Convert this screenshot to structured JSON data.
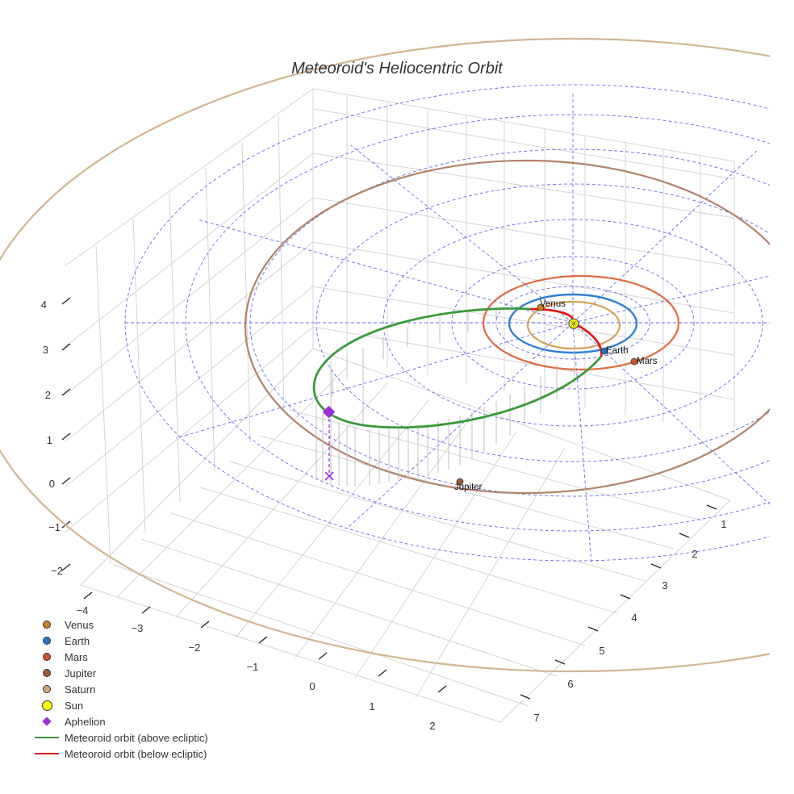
{
  "chart_data": {
    "type": "scatter3d",
    "title": "Meteoroid's Heliocentric Orbit",
    "axes": {
      "x": {
        "tick_labels": [
          "−4",
          "−3",
          "−2",
          "−1",
          "0",
          "1",
          "2"
        ]
      },
      "y": {
        "tick_labels": [
          "1",
          "2",
          "3",
          "4",
          "5",
          "6",
          "7"
        ]
      },
      "z": {
        "tick_labels": [
          "−2",
          "−1",
          "0",
          "1",
          "2",
          "3",
          "4"
        ]
      }
    },
    "planets": [
      {
        "name": "Venus",
        "label": "Venus",
        "color": "#d17f1f",
        "orbit_color": "#d4a35a"
      },
      {
        "name": "Earth",
        "label": "Earth",
        "color": "#2575c9",
        "orbit_color": "#2f7fd0"
      },
      {
        "name": "Mars",
        "label": "Mars",
        "color": "#d0522a",
        "orbit_color": "#e06a42"
      },
      {
        "name": "Jupiter",
        "label": "Jupiter",
        "color": "#9c5a34",
        "orbit_color": "#b3826a"
      },
      {
        "name": "Saturn",
        "label": "",
        "color": "#d6a77a",
        "orbit_color": "#d2b591"
      }
    ],
    "sun": {
      "name": "Sun",
      "color": "#ffff00"
    },
    "aphelion": {
      "name": "Aphelion",
      "color": "#9b30d8"
    },
    "meteoroid_orbit": [
      {
        "name": "Meteoroid orbit (above ecliptic)",
        "color": "#3a9a3a"
      },
      {
        "name": "Meteoroid orbit (below ecliptic)",
        "color": "#e01a1a"
      }
    ],
    "ecliptic_grid_color": "#5050e0",
    "legend_position": "bottom-left"
  },
  "legend": {
    "items": [
      {
        "label": "Venus",
        "kind": "dot",
        "color": "#d17f1f"
      },
      {
        "label": "Earth",
        "kind": "dot",
        "color": "#2575c9"
      },
      {
        "label": "Mars",
        "kind": "dot",
        "color": "#d0522a"
      },
      {
        "label": "Jupiter",
        "kind": "dot",
        "color": "#9c5a34"
      },
      {
        "label": "Saturn",
        "kind": "dot",
        "color": "#d6a77a"
      },
      {
        "label": "Sun",
        "kind": "sun",
        "color": "#ffff00"
      },
      {
        "label": "Aphelion",
        "kind": "diamond",
        "color": "#9b30d8"
      },
      {
        "label": "Meteoroid orbit (above ecliptic)",
        "kind": "line",
        "color": "#3a9a3a"
      },
      {
        "label": "Meteoroid orbit (below ecliptic)",
        "kind": "line",
        "color": "#e01a1a"
      }
    ]
  }
}
